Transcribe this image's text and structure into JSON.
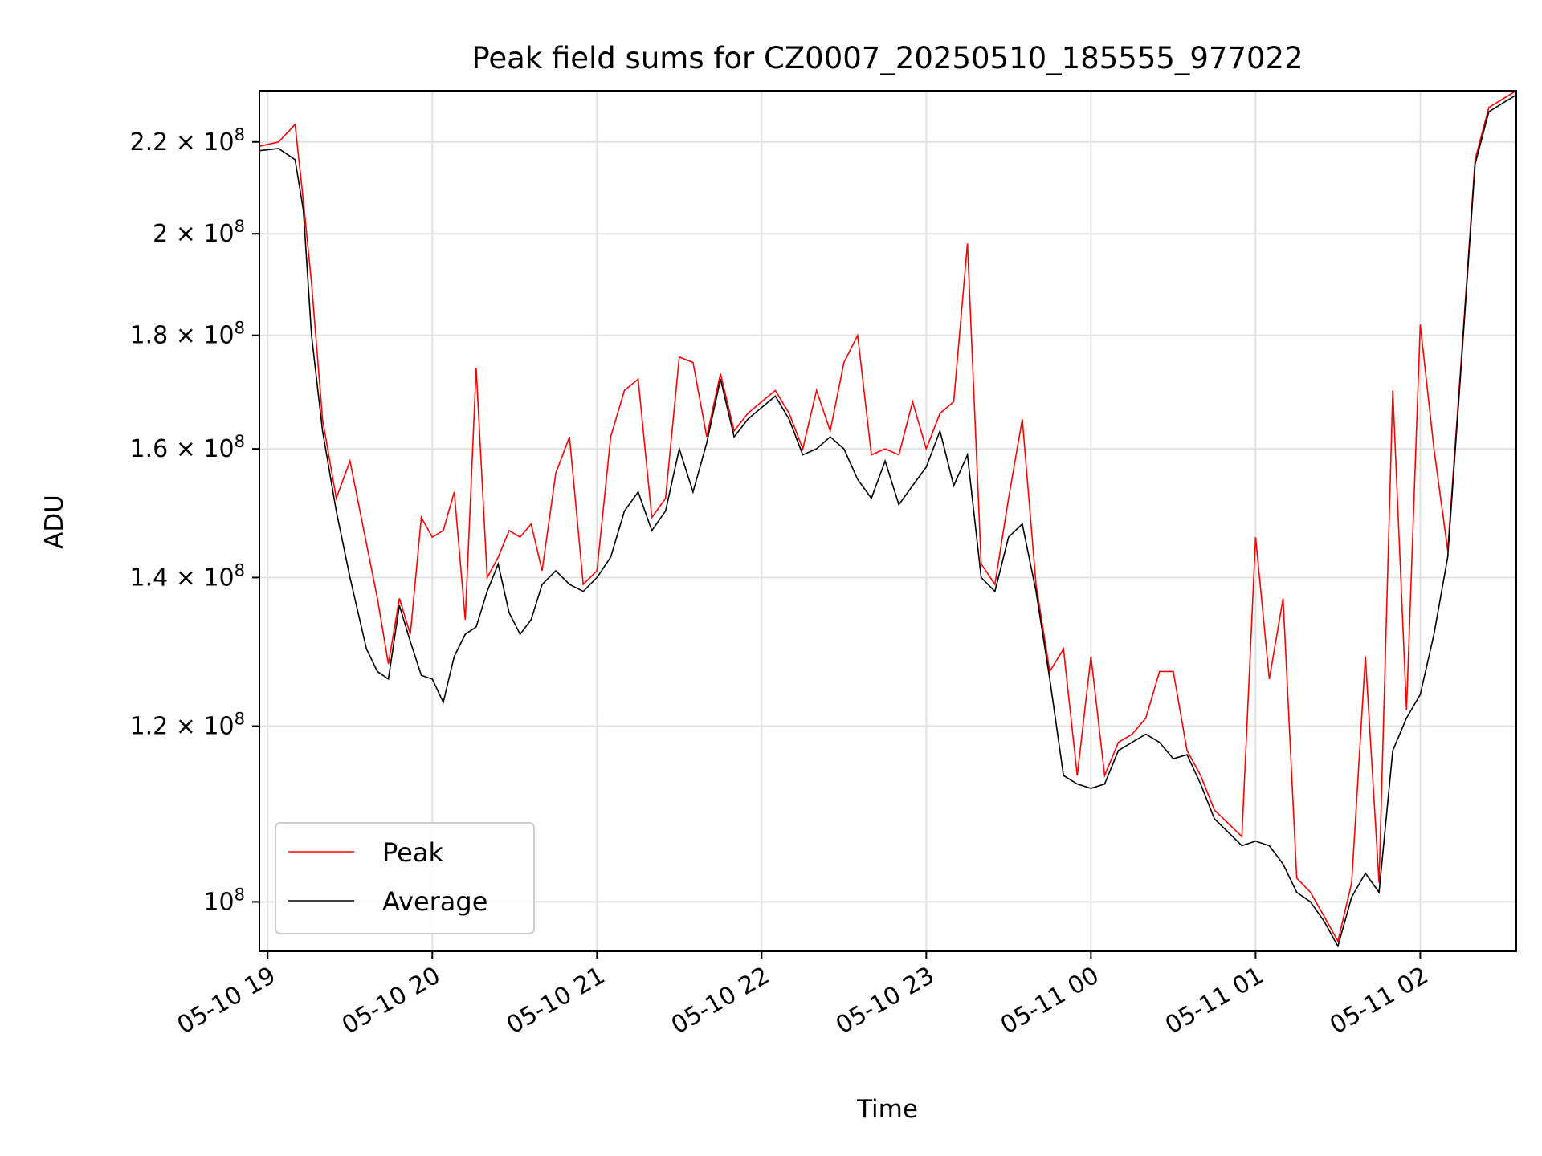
{
  "chart_data": {
    "type": "line",
    "title": "Peak field sums for CZ0007_20250510_185555_977022",
    "xlabel": "Time",
    "ylabel": "ADU",
    "y_scale": "log",
    "ylim": [
      95000000,
      232000000
    ],
    "xlim": [
      "05-10 18:57",
      "05-11 02:35"
    ],
    "grid": true,
    "legend_position": "lower-left",
    "x_ticks": [
      "05-10 19",
      "05-10 20",
      "05-10 21",
      "05-10 22",
      "05-10 23",
      "05-11 00",
      "05-11 01",
      "05-11 02"
    ],
    "y_ticks": [
      {
        "value": 100000000,
        "mantissa": "",
        "exponent": "8",
        "base": "10"
      },
      {
        "value": 120000000,
        "mantissa": "1.2",
        "exponent": "8",
        "base": "10"
      },
      {
        "value": 140000000,
        "mantissa": "1.4",
        "exponent": "8",
        "base": "10"
      },
      {
        "value": 160000000,
        "mantissa": "1.6",
        "exponent": "8",
        "base": "10"
      },
      {
        "value": 180000000,
        "mantissa": "1.8",
        "exponent": "8",
        "base": "10"
      },
      {
        "value": 200000000,
        "mantissa": "2",
        "exponent": "8",
        "base": "10"
      },
      {
        "value": 220000000,
        "mantissa": "2.2",
        "exponent": "8",
        "base": "10"
      }
    ],
    "series": [
      {
        "name": "Average",
        "color": "#000000",
        "x": [
          "05-10 18:57",
          "05-10 19:04",
          "05-10 19:10",
          "05-10 19:13",
          "05-10 19:16",
          "05-10 19:20",
          "05-10 19:25",
          "05-10 19:30",
          "05-10 19:36",
          "05-10 19:40",
          "05-10 19:44",
          "05-10 19:48",
          "05-10 19:52",
          "05-10 19:56",
          "05-10 20:00",
          "05-10 20:04",
          "05-10 20:08",
          "05-10 20:12",
          "05-10 20:16",
          "05-10 20:20",
          "05-10 20:24",
          "05-10 20:28",
          "05-10 20:32",
          "05-10 20:36",
          "05-10 20:40",
          "05-10 20:45",
          "05-10 20:50",
          "05-10 20:55",
          "05-10 21:00",
          "05-10 21:05",
          "05-10 21:10",
          "05-10 21:15",
          "05-10 21:20",
          "05-10 21:25",
          "05-10 21:30",
          "05-10 21:35",
          "05-10 21:40",
          "05-10 21:45",
          "05-10 21:50",
          "05-10 21:55",
          "05-10 22:00",
          "05-10 22:05",
          "05-10 22:10",
          "05-10 22:15",
          "05-10 22:20",
          "05-10 22:25",
          "05-10 22:30",
          "05-10 22:35",
          "05-10 22:40",
          "05-10 22:45",
          "05-10 22:50",
          "05-10 22:55",
          "05-10 23:00",
          "05-10 23:05",
          "05-10 23:10",
          "05-10 23:15",
          "05-10 23:20",
          "05-10 23:25",
          "05-10 23:30",
          "05-10 23:35",
          "05-10 23:40",
          "05-10 23:45",
          "05-10 23:50",
          "05-10 23:55",
          "05-11 00:00",
          "05-11 00:05",
          "05-11 00:10",
          "05-11 00:15",
          "05-11 00:20",
          "05-11 00:25",
          "05-11 00:30",
          "05-11 00:35",
          "05-11 00:40",
          "05-11 00:45",
          "05-11 00:50",
          "05-11 00:55",
          "05-11 01:00",
          "05-11 01:05",
          "05-11 01:10",
          "05-11 01:15",
          "05-11 01:20",
          "05-11 01:25",
          "05-11 01:30",
          "05-11 01:35",
          "05-11 01:40",
          "05-11 01:45",
          "05-11 01:50",
          "05-11 01:55",
          "05-11 02:00",
          "05-11 02:05",
          "05-11 02:10",
          "05-11 02:15",
          "05-11 02:20",
          "05-11 02:25",
          "05-11 02:30",
          "05-11 02:35"
        ],
        "y": [
          218000000,
          218500000,
          216000000,
          205000000,
          180000000,
          163000000,
          150000000,
          140000000,
          130000000,
          127000000,
          126000000,
          136000000,
          131000000,
          126500000,
          126000000,
          123000000,
          129000000,
          132000000,
          133000000,
          138000000,
          142000000,
          135000000,
          132000000,
          134000000,
          139000000,
          141000000,
          139000000,
          138000000,
          140000000,
          143000000,
          150000000,
          153000000,
          147000000,
          150000000,
          160000000,
          153000000,
          161000000,
          172000000,
          162000000,
          165000000,
          167000000,
          169000000,
          165000000,
          159000000,
          160000000,
          162000000,
          160000000,
          155000000,
          152000000,
          158000000,
          151000000,
          154000000,
          157000000,
          163000000,
          154000000,
          159000000,
          140000000,
          138000000,
          146000000,
          148000000,
          138000000,
          126000000,
          114000000,
          113000000,
          112500000,
          113000000,
          117000000,
          118000000,
          119000000,
          118000000,
          116000000,
          116500000,
          113000000,
          109000000,
          107500000,
          106000000,
          106500000,
          106000000,
          104000000,
          101000000,
          100000000,
          98000000,
          95500000,
          100500000,
          103000000,
          101000000,
          117000000,
          121000000,
          124000000,
          132000000,
          143000000,
          175000000,
          215000000,
          227000000,
          229000000,
          231000000
        ]
      },
      {
        "name": "Peak",
        "color": "#ff0000",
        "x": [
          "05-10 18:57",
          "05-10 19:04",
          "05-10 19:10",
          "05-10 19:13",
          "05-10 19:16",
          "05-10 19:20",
          "05-10 19:25",
          "05-10 19:30",
          "05-10 19:36",
          "05-10 19:40",
          "05-10 19:44",
          "05-10 19:48",
          "05-10 19:52",
          "05-10 19:56",
          "05-10 20:00",
          "05-10 20:04",
          "05-10 20:08",
          "05-10 20:12",
          "05-10 20:16",
          "05-10 20:20",
          "05-10 20:24",
          "05-10 20:28",
          "05-10 20:32",
          "05-10 20:36",
          "05-10 20:40",
          "05-10 20:45",
          "05-10 20:50",
          "05-10 20:55",
          "05-10 21:00",
          "05-10 21:05",
          "05-10 21:10",
          "05-10 21:15",
          "05-10 21:20",
          "05-10 21:25",
          "05-10 21:30",
          "05-10 21:35",
          "05-10 21:40",
          "05-10 21:45",
          "05-10 21:50",
          "05-10 21:55",
          "05-10 22:00",
          "05-10 22:05",
          "05-10 22:10",
          "05-10 22:15",
          "05-10 22:20",
          "05-10 22:25",
          "05-10 22:30",
          "05-10 22:35",
          "05-10 22:40",
          "05-10 22:45",
          "05-10 22:50",
          "05-10 22:55",
          "05-10 23:00",
          "05-10 23:05",
          "05-10 23:10",
          "05-10 23:15",
          "05-10 23:20",
          "05-10 23:25",
          "05-10 23:30",
          "05-10 23:35",
          "05-10 23:40",
          "05-10 23:45",
          "05-10 23:50",
          "05-10 23:55",
          "05-11 00:00",
          "05-11 00:05",
          "05-11 00:10",
          "05-11 00:15",
          "05-11 00:20",
          "05-11 00:25",
          "05-11 00:30",
          "05-11 00:35",
          "05-11 00:40",
          "05-11 00:45",
          "05-11 00:50",
          "05-11 00:55",
          "05-11 01:00",
          "05-11 01:05",
          "05-11 01:10",
          "05-11 01:15",
          "05-11 01:20",
          "05-11 01:25",
          "05-11 01:30",
          "05-11 01:35",
          "05-11 01:40",
          "05-11 01:45",
          "05-11 01:50",
          "05-11 01:55",
          "05-11 02:00",
          "05-11 02:05",
          "05-11 02:10",
          "05-11 02:15",
          "05-11 02:20",
          "05-11 02:25",
          "05-11 02:30",
          "05-11 02:35"
        ],
        "y": [
          219000000,
          220000000,
          224000000,
          207000000,
          190000000,
          165000000,
          152000000,
          158000000,
          145000000,
          137000000,
          128000000,
          137000000,
          132000000,
          149000000,
          146000000,
          147000000,
          153000000,
          134000000,
          174000000,
          140000000,
          143000000,
          147000000,
          146000000,
          148000000,
          141000000,
          156000000,
          162000000,
          139000000,
          141000000,
          162000000,
          170000000,
          172000000,
          149000000,
          152000000,
          176000000,
          175000000,
          162000000,
          173000000,
          163000000,
          166000000,
          168000000,
          170000000,
          166000000,
          160000000,
          170000000,
          163000000,
          175000000,
          180000000,
          159000000,
          160000000,
          159000000,
          168000000,
          160000000,
          166000000,
          168000000,
          198000000,
          142000000,
          139000000,
          152000000,
          165000000,
          139000000,
          127000000,
          130000000,
          114000000,
          129000000,
          114000000,
          118000000,
          119000000,
          121000000,
          127000000,
          127000000,
          117000000,
          114000000,
          110000000,
          108500000,
          107000000,
          146000000,
          126000000,
          137000000,
          102500000,
          101000000,
          98500000,
          96000000,
          102000000,
          129000000,
          102000000,
          170000000,
          122000000,
          182000000,
          160000000,
          144000000,
          176000000,
          216000000,
          228000000,
          230000000,
          232000000
        ]
      }
    ]
  }
}
